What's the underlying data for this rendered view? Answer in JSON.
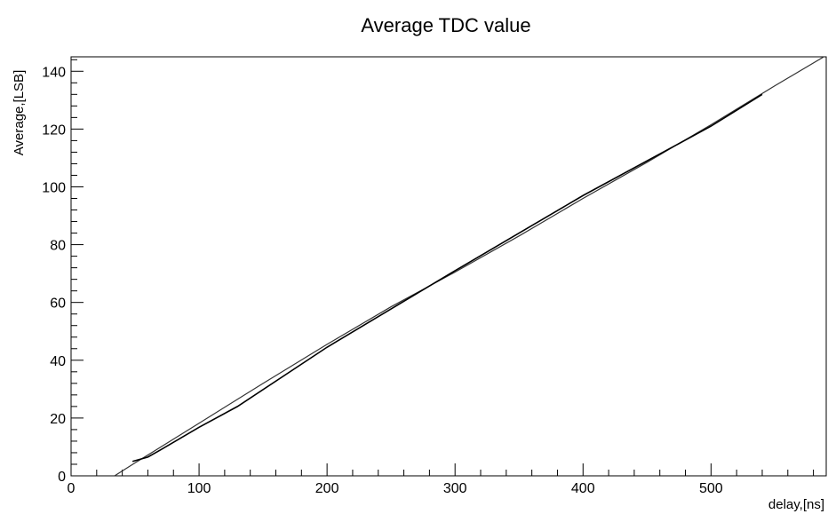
{
  "chart_data": {
    "type": "line",
    "title": "Average TDC value",
    "xlabel": "delay,[ns]",
    "ylabel": "Average,[LSB]",
    "xlim": [
      0,
      590
    ],
    "ylim": [
      0,
      145
    ],
    "x_ticks": [
      0,
      100,
      200,
      300,
      400,
      500
    ],
    "y_ticks": [
      0,
      20,
      40,
      60,
      80,
      100,
      120,
      140
    ],
    "grid": false,
    "legend": "none",
    "series": [
      {
        "color": "#333333",
        "x": [
          34,
          50,
          60,
          100,
          150,
          200,
          250,
          300,
          350,
          400,
          450,
          500,
          550,
          590
        ],
        "y": [
          0,
          4.5,
          7.2,
          18.2,
          32,
          45.5,
          58.5,
          70.5,
          83,
          96,
          108.5,
          121.5,
          135,
          145.5
        ]
      },
      {
        "color": "#000000",
        "x": [
          48,
          60,
          70,
          100,
          130,
          200,
          300,
          400,
          500,
          540
        ],
        "y": [
          5,
          6.5,
          9,
          16.8,
          24,
          44.5,
          71,
          97,
          121,
          132
        ]
      }
    ]
  }
}
